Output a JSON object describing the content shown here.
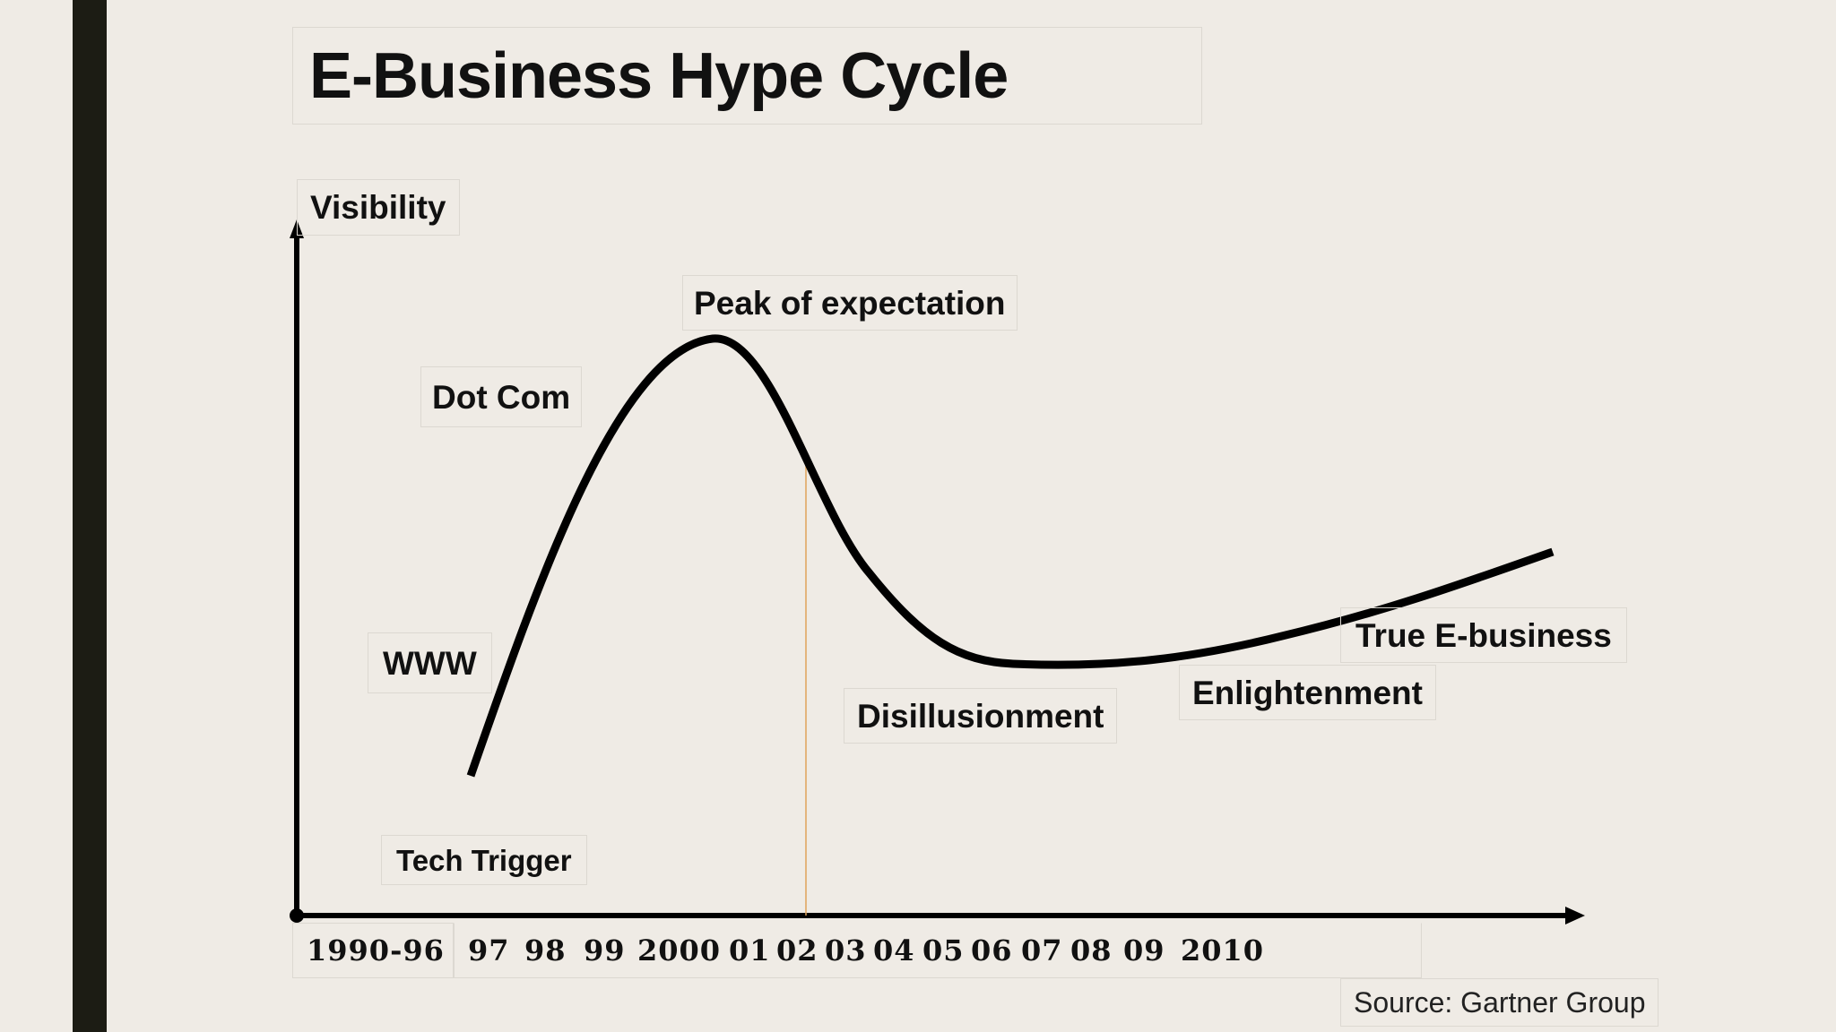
{
  "title": "E-Business Hype Cycle",
  "y_axis_label": "Visibility",
  "phases": {
    "peak": "Peak of expectation",
    "dotcom": "Dot Com",
    "www": "WWW",
    "trigger": "Tech Trigger",
    "disillusionment": "Disillusionment",
    "enlightenment": "Enlightenment",
    "true_ebusiness": "True E-business"
  },
  "x_ticks": [
    "1990-96",
    "97",
    "98",
    "99",
    "2000",
    "01",
    "02",
    "03",
    "04",
    "05",
    "06",
    "07",
    "08",
    "09",
    "2010"
  ],
  "source": "Source: Gartner Group",
  "colors": {
    "curve": "#000000",
    "marker_line": "#e0a35a",
    "side_bar": "#1c1c14",
    "background": "#efebe5"
  }
}
